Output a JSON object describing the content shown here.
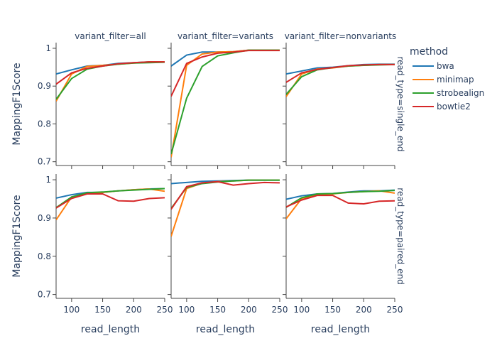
{
  "chart_data": {
    "type": "line",
    "columns": [
      {
        "facet_label": "variant_filter=all"
      },
      {
        "facet_label": "variant_filter=variants"
      },
      {
        "facet_label": "variant_filter=nonvariants"
      }
    ],
    "rows": [
      {
        "facet_label": "read_type=single_end",
        "y_label": "MappingF1Score"
      },
      {
        "facet_label": "read_type=paired_end",
        "y_label": "MappingF1Score"
      }
    ],
    "xlabel": "read_length",
    "x": [
      75,
      100,
      125,
      150,
      175,
      200,
      225,
      250
    ],
    "xlim": [
      75,
      250
    ],
    "x_ticks": [
      100,
      150,
      200,
      250
    ],
    "ylim": [
      0.69,
      1.015
    ],
    "y_ticks": [
      0.7,
      0.8,
      0.9,
      1
    ],
    "y_tick_labels": [
      "0.7",
      "0.8",
      "0.9",
      "1"
    ],
    "legend": {
      "title": "method",
      "placement": "right"
    },
    "series_info": [
      {
        "name": "bwa",
        "color": "#1f77b4"
      },
      {
        "name": "minimap",
        "color": "#ff7f0e"
      },
      {
        "name": "strobealign",
        "color": "#2ca02c"
      },
      {
        "name": "bowtie2",
        "color": "#d62728"
      }
    ],
    "panels": [
      {
        "row": 0,
        "col": 0,
        "series": [
          {
            "name": "bwa",
            "values": [
              0.932,
              0.943,
              0.953,
              0.955,
              0.96,
              0.962,
              0.964,
              0.964
            ]
          },
          {
            "name": "minimap",
            "values": [
              0.86,
              0.932,
              0.952,
              0.955,
              0.958,
              0.961,
              0.964,
              0.964
            ]
          },
          {
            "name": "strobealign",
            "values": [
              0.865,
              0.92,
              0.945,
              0.953,
              0.958,
              0.961,
              0.962,
              0.963
            ]
          },
          {
            "name": "bowtie2",
            "values": [
              0.905,
              0.935,
              0.947,
              0.953,
              0.959,
              0.962,
              0.964,
              0.964
            ]
          }
        ]
      },
      {
        "row": 0,
        "col": 1,
        "series": [
          {
            "name": "bwa",
            "values": [
              0.953,
              0.982,
              0.99,
              0.99,
              0.991,
              0.995,
              0.995,
              0.995
            ]
          },
          {
            "name": "minimap",
            "values": [
              0.712,
              0.955,
              0.985,
              0.99,
              0.991,
              0.995,
              0.995,
              0.995
            ]
          },
          {
            "name": "strobealign",
            "values": [
              0.72,
              0.868,
              0.952,
              0.98,
              0.988,
              0.995,
              0.995,
              0.995
            ]
          },
          {
            "name": "bowtie2",
            "values": [
              0.873,
              0.96,
              0.977,
              0.987,
              0.99,
              0.994,
              0.994,
              0.994
            ]
          }
        ]
      },
      {
        "row": 0,
        "col": 2,
        "series": [
          {
            "name": "bwa",
            "values": [
              0.932,
              0.94,
              0.948,
              0.95,
              0.954,
              0.957,
              0.958,
              0.958
            ]
          },
          {
            "name": "minimap",
            "values": [
              0.872,
              0.932,
              0.945,
              0.948,
              0.953,
              0.955,
              0.957,
              0.957
            ]
          },
          {
            "name": "strobealign",
            "values": [
              0.878,
              0.925,
              0.943,
              0.949,
              0.953,
              0.955,
              0.956,
              0.957
            ]
          },
          {
            "name": "bowtie2",
            "values": [
              0.91,
              0.935,
              0.944,
              0.949,
              0.954,
              0.956,
              0.957,
              0.957
            ]
          }
        ]
      },
      {
        "row": 1,
        "col": 0,
        "series": [
          {
            "name": "bwa",
            "values": [
              0.952,
              0.961,
              0.967,
              0.967,
              0.971,
              0.974,
              0.976,
              0.977
            ]
          },
          {
            "name": "minimap",
            "values": [
              0.895,
              0.955,
              0.964,
              0.967,
              0.971,
              0.974,
              0.976,
              0.97
            ]
          },
          {
            "name": "strobealign",
            "values": [
              0.927,
              0.955,
              0.966,
              0.968,
              0.971,
              0.973,
              0.975,
              0.977
            ]
          },
          {
            "name": "bowtie2",
            "values": [
              0.926,
              0.951,
              0.963,
              0.963,
              0.945,
              0.944,
              0.951,
              0.953
            ]
          }
        ]
      },
      {
        "row": 1,
        "col": 1,
        "series": [
          {
            "name": "bwa",
            "values": [
              0.99,
              0.993,
              0.996,
              0.997,
              0.998,
              0.999,
              0.999,
              0.999
            ]
          },
          {
            "name": "minimap",
            "values": [
              0.852,
              0.977,
              0.991,
              0.995,
              0.997,
              0.999,
              0.999,
              0.999
            ]
          },
          {
            "name": "strobealign",
            "values": [
              0.925,
              0.98,
              0.99,
              0.994,
              0.997,
              0.999,
              0.999,
              0.999
            ]
          },
          {
            "name": "bowtie2",
            "values": [
              0.923,
              0.982,
              0.992,
              0.995,
              0.986,
              0.99,
              0.993,
              0.992
            ]
          }
        ]
      },
      {
        "row": 1,
        "col": 2,
        "series": [
          {
            "name": "bwa",
            "values": [
              0.949,
              0.958,
              0.963,
              0.964,
              0.968,
              0.971,
              0.971,
              0.973
            ]
          },
          {
            "name": "minimap",
            "values": [
              0.898,
              0.951,
              0.961,
              0.963,
              0.967,
              0.969,
              0.971,
              0.965
            ]
          },
          {
            "name": "strobealign",
            "values": [
              0.928,
              0.953,
              0.963,
              0.964,
              0.967,
              0.969,
              0.97,
              0.972
            ]
          },
          {
            "name": "bowtie2",
            "values": [
              0.929,
              0.947,
              0.959,
              0.959,
              0.939,
              0.937,
              0.944,
              0.945
            ]
          }
        ]
      }
    ]
  }
}
